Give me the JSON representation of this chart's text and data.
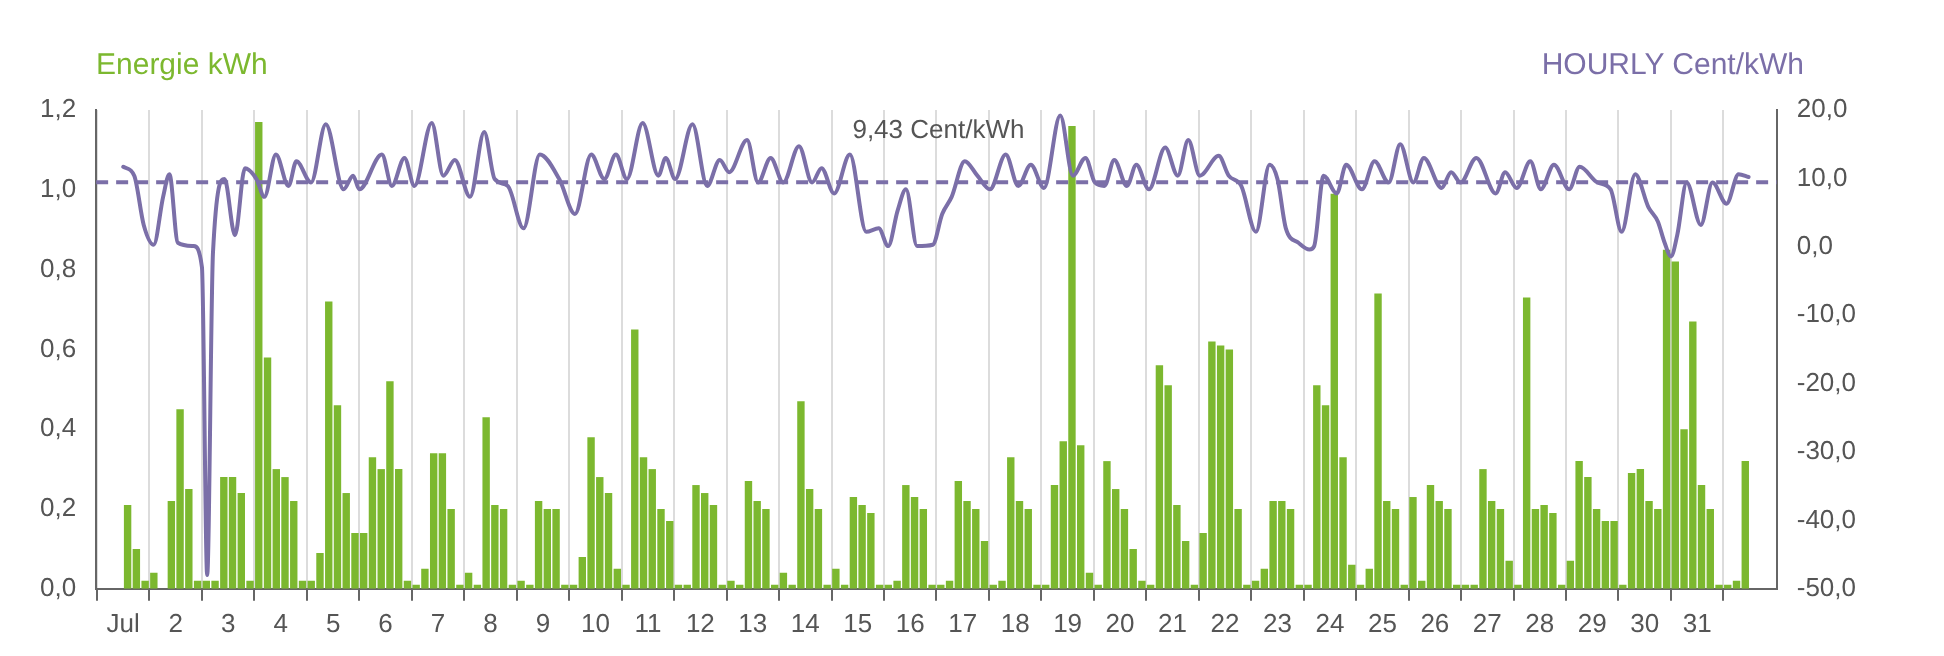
{
  "chart_data": {
    "type": "bar",
    "ylabel": "Energie kWh",
    "y2label": "HOURLY Cent/kWh",
    "grid": "x",
    "marker": "none",
    "xlim": [
      1,
      32
    ],
    "xticks": [
      {
        "value": 1,
        "label": "Jul"
      },
      2,
      3,
      4,
      5,
      6,
      7,
      8,
      9,
      10,
      11,
      12,
      13,
      14,
      15,
      16,
      17,
      18,
      19,
      20,
      21,
      22,
      23,
      24,
      25,
      26,
      27,
      28,
      29,
      30,
      31
    ],
    "ylim": [
      0,
      1.2
    ],
    "yticks": [
      {
        "value": 0,
        "label": "0,0"
      },
      {
        "value": 0.2,
        "label": "0,2"
      },
      {
        "value": 0.4,
        "label": "0,4"
      },
      {
        "value": 0.6,
        "label": "0,6"
      },
      {
        "value": 0.8,
        "label": "0,8"
      },
      {
        "value": 1,
        "label": "1,0"
      },
      {
        "value": 1.2,
        "label": "1,2"
      }
    ],
    "y2lim": [
      -50,
      20
    ],
    "y2ticks": [
      {
        "value": -50,
        "label": "-50,0"
      },
      {
        "value": -40,
        "label": "-40,0"
      },
      {
        "value": -30,
        "label": "-30,0"
      },
      {
        "value": -20,
        "label": "-20,0"
      },
      {
        "value": -10,
        "label": "-10,0"
      },
      {
        "value": 0,
        "label": "0,0"
      },
      {
        "value": 10,
        "label": "10,0"
      },
      {
        "value": 20,
        "label": "20,0"
      }
    ],
    "ref_lines": [
      {
        "axis": "y2",
        "value": 9.43,
        "label": "9,43 Cent/kWh",
        "color": "#7b6fa8",
        "line_style": "dashed"
      }
    ],
    "series": [
      {
        "color": "#7cb82f",
        "x": [
          1.083,
          1.25,
          1.417,
          1.583,
          1.75,
          1.917,
          2.083,
          2.25,
          2.417,
          2.583,
          2.75,
          2.917,
          3.083,
          3.25,
          3.417,
          3.583,
          3.75,
          3.917,
          4.083,
          4.25,
          4.417,
          4.583,
          4.75,
          4.917,
          5.083,
          5.25,
          5.417,
          5.583,
          5.75,
          5.917,
          6.083,
          6.25,
          6.417,
          6.583,
          6.75,
          6.917,
          7.083,
          7.25,
          7.417,
          7.583,
          7.75,
          7.917,
          8.083,
          8.25,
          8.417,
          8.583,
          8.75,
          8.917,
          9.083,
          9.25,
          9.417,
          9.583,
          9.75,
          9.917,
          10.083,
          10.25,
          10.417,
          10.583,
          10.75,
          10.917,
          11.083,
          11.25,
          11.417,
          11.583,
          11.75,
          11.917,
          12.083,
          12.25,
          12.417,
          12.583,
          12.75,
          12.917,
          13.083,
          13.25,
          13.417,
          13.583,
          13.75,
          13.917,
          14.083,
          14.25,
          14.417,
          14.583,
          14.75,
          14.917,
          15.083,
          15.25,
          15.417,
          15.583,
          15.75,
          15.917,
          16.083,
          16.25,
          16.417,
          16.583,
          16.75,
          16.917,
          17.083,
          17.25,
          17.417,
          17.583,
          17.75,
          17.917,
          18.083,
          18.25,
          18.417,
          18.583,
          18.75,
          18.917,
          19.083,
          19.25,
          19.417,
          19.583,
          19.75,
          19.917,
          20.083,
          20.25,
          20.417,
          20.583,
          20.75,
          20.917,
          21.083,
          21.25,
          21.417,
          21.583,
          21.75,
          21.917,
          22.083,
          22.25,
          22.417,
          22.583,
          22.75,
          22.917,
          23.083,
          23.25,
          23.417,
          23.583,
          23.75,
          23.917,
          24.083,
          24.25,
          24.417,
          24.583,
          24.75,
          24.917,
          25.083,
          25.25,
          25.417,
          25.583,
          25.75,
          25.917,
          26.083,
          26.25,
          26.417,
          26.583,
          26.75,
          26.917,
          27.083,
          27.25,
          27.417,
          27.583,
          27.75,
          27.917,
          28.083,
          28.25,
          28.417,
          28.583,
          28.75,
          28.917,
          29.083,
          29.25,
          29.417,
          29.583,
          29.75,
          29.917,
          30.083,
          30.25,
          30.417,
          30.583,
          30.75,
          30.917,
          31.083,
          31.25,
          31.417,
          31.583,
          31.75,
          31.917
        ],
        "values": [
          0.21,
          0.1,
          0.02,
          0.04,
          0,
          0.22,
          0.45,
          0.25,
          0.02,
          0.02,
          0.02,
          0.28,
          0.28,
          0.24,
          0.02,
          1.17,
          0.58,
          0.3,
          0.28,
          0.22,
          0.02,
          0.02,
          0.09,
          0.72,
          0.46,
          0.24,
          0.14,
          0.14,
          0.33,
          0.3,
          0.52,
          0.3,
          0.02,
          0.01,
          0.05,
          0.34,
          0.34,
          0.2,
          0.01,
          0.04,
          0.01,
          0.43,
          0.21,
          0.2,
          0.01,
          0.02,
          0.01,
          0.22,
          0.2,
          0.2,
          0.01,
          0.01,
          0.08,
          0.38,
          0.28,
          0.24,
          0.05,
          0.01,
          0.65,
          0.33,
          0.3,
          0.2,
          0.17,
          0.01,
          0.01,
          0.26,
          0.24,
          0.21,
          0.01,
          0.02,
          0.01,
          0.27,
          0.22,
          0.2,
          0.01,
          0.04,
          0.01,
          0.47,
          0.25,
          0.2,
          0.01,
          0.05,
          0.01,
          0.23,
          0.21,
          0.19,
          0.01,
          0.01,
          0.02,
          0.26,
          0.23,
          0.2,
          0.01,
          0.01,
          0.02,
          0.27,
          0.22,
          0.2,
          0.12,
          0.01,
          0.02,
          0.33,
          0.22,
          0.2,
          0.01,
          0.01,
          0.26,
          0.37,
          1.16,
          0.36,
          0.04,
          0.01,
          0.32,
          0.25,
          0.2,
          0.1,
          0.02,
          0.01,
          0.56,
          0.51,
          0.21,
          0.12,
          0.01,
          0.14,
          0.62,
          0.61,
          0.6,
          0.2,
          0.01,
          0.02,
          0.05,
          0.22,
          0.22,
          0.2,
          0.01,
          0.01,
          0.51,
          0.46,
          0.99,
          0.33,
          0.06,
          0.01,
          0.05,
          0.74,
          0.22,
          0.2,
          0.01,
          0.23,
          0.02,
          0.26,
          0.22,
          0.2,
          0.01,
          0.01,
          0.01,
          0.3,
          0.22,
          0.2,
          0.07,
          0.01,
          0.73,
          0.2,
          0.21,
          0.19,
          0.01,
          0.07,
          0.32,
          0.28,
          0.2,
          0.17,
          0.17,
          0.01,
          0.29,
          0.3,
          0.22,
          0.2,
          0.85,
          0.82,
          0.4,
          0.67,
          0.26,
          0.2,
          0.01,
          0.01,
          0.02,
          0.32
        ]
      },
      {
        "type": "line",
        "axis": "y2",
        "color": "#7b6fa8",
        "x": [
          1.0,
          1.21,
          1.39,
          1.58,
          1.76,
          1.88,
          2.04,
          2.34,
          2.5,
          2.6,
          2.71,
          2.93,
          3.13,
          3.32,
          3.54,
          3.69,
          3.91,
          4.15,
          4.3,
          4.58,
          4.86,
          5.2,
          5.38,
          5.5,
          5.93,
          6.12,
          6.36,
          6.55,
          6.88,
          7.1,
          7.32,
          7.61,
          7.88,
          8.08,
          8.33,
          8.63,
          8.94,
          9.31,
          9.61,
          9.92,
          10.17,
          10.39,
          10.6,
          10.9,
          11.2,
          11.34,
          11.52,
          11.85,
          12.13,
          12.37,
          12.55,
          12.89,
          13.1,
          13.34,
          13.58,
          13.88,
          14.13,
          14.31,
          14.55,
          14.85,
          15.16,
          15.4,
          15.58,
          15.76,
          15.92,
          16.13,
          16.43,
          16.61,
          16.79,
          17.04,
          17.28,
          17.52,
          17.82,
          18.06,
          18.3,
          18.55,
          18.86,
          19.1,
          19.34,
          19.52,
          19.7,
          19.89,
          20.13,
          20.31,
          20.55,
          20.86,
          21.1,
          21.3,
          21.52,
          21.88,
          22.07,
          22.31,
          22.59,
          22.85,
          23.0,
          23.16,
          23.4,
          23.61,
          23.7,
          23.88,
          24.13,
          24.31,
          24.61,
          24.85,
          25.12,
          25.34,
          25.59,
          25.79,
          26.13,
          26.31,
          26.49,
          26.79,
          27.16,
          27.34,
          27.56,
          27.82,
          28.02,
          28.27,
          28.56,
          28.76,
          29.1,
          29.35,
          29.56,
          29.82,
          30.07,
          30.25,
          30.38,
          30.5,
          30.62,
          30.8,
          31.07,
          31.29,
          31.56,
          31.79,
          31.98
        ],
        "values": [
          11.7,
          10.4,
          3.2,
          0.3,
          7.3,
          10.6,
          0.6,
          0.1,
          -3,
          -48,
          -0.9,
          9.9,
          1.7,
          11.5,
          9.9,
          7.3,
          13.5,
          8.9,
          12.5,
          9.4,
          17.9,
          8.4,
          10.4,
          8.4,
          13.5,
          8.9,
          13,
          8.9,
          18.1,
          10.4,
          12.7,
          7.3,
          16.8,
          9.9,
          8.9,
          2.7,
          13.5,
          9.9,
          4.8,
          13.5,
          9.9,
          13.5,
          9.9,
          18.1,
          10.4,
          13,
          9.9,
          17.9,
          8.9,
          12.7,
          10.9,
          15.6,
          9.4,
          13,
          9.4,
          14.7,
          9.4,
          11.5,
          7.8,
          13.5,
          2.2,
          2.7,
          0.1,
          5.3,
          8.4,
          0.1,
          0.3,
          4.8,
          7.3,
          12.5,
          10.4,
          8.4,
          13.5,
          8.9,
          12,
          8.6,
          19.2,
          10.4,
          13,
          9.4,
          8.9,
          12.7,
          8.9,
          12,
          8.4,
          14.5,
          10.4,
          15.6,
          10.4,
          13.3,
          10.4,
          8.9,
          2.2,
          12,
          9.9,
          2.7,
          0.6,
          -0.4,
          0.1,
          10.4,
          7.8,
          12,
          8.4,
          12.5,
          9.4,
          15,
          9.4,
          13,
          8.6,
          10.9,
          9.4,
          13,
          7.8,
          10.9,
          8.6,
          12.5,
          8.4,
          12,
          8.4,
          11.7,
          9.4,
          8.4,
          2.2,
          10.6,
          5.8,
          3.7,
          0.6,
          -1.4,
          1.7,
          9.4,
          3.2,
          9.4,
          6.3,
          10.6,
          10.2
        ]
      }
    ]
  }
}
